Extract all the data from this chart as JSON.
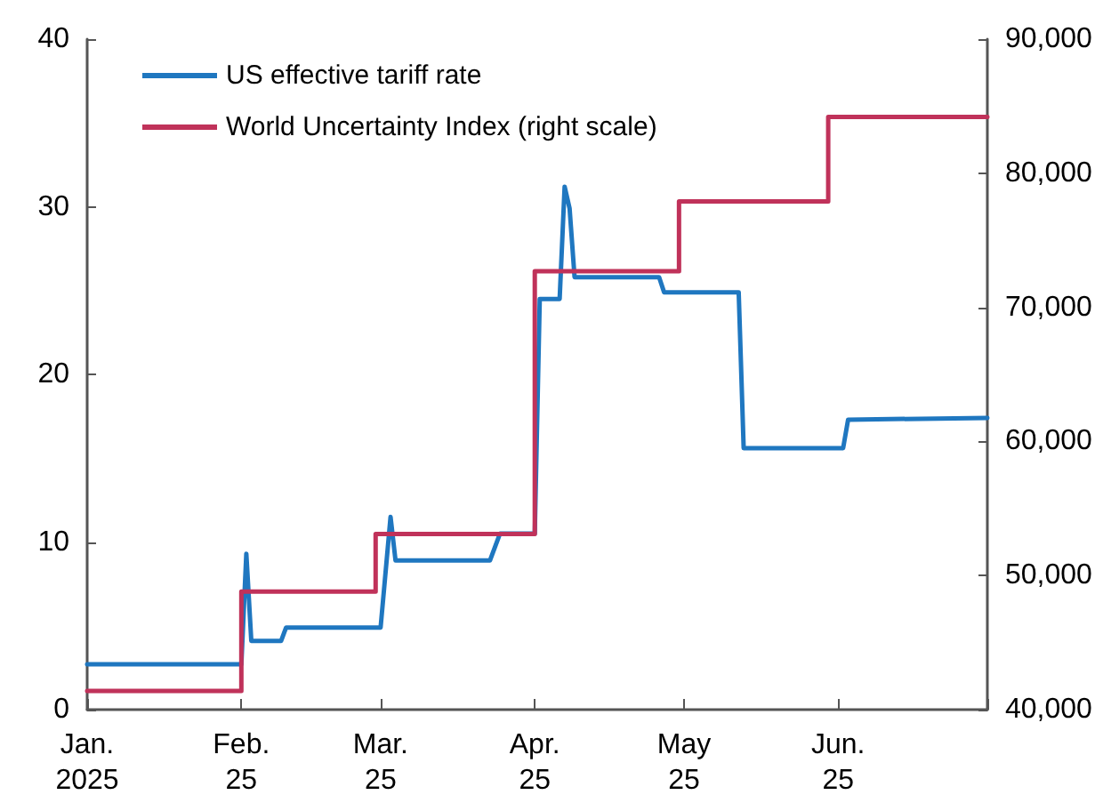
{
  "chart_data": {
    "type": "line",
    "xlim": [
      "2025-01-01",
      "2025-07-01"
    ],
    "xticks": [
      {
        "value": "2025-01-01",
        "label": "Jan.\n2025"
      },
      {
        "value": "2025-02-01",
        "label": "Feb.\n25"
      },
      {
        "value": "2025-03-01",
        "label": "Mar.\n25"
      },
      {
        "value": "2025-04-01",
        "label": "Apr.\n25"
      },
      {
        "value": "2025-05-01",
        "label": "May\n25"
      },
      {
        "value": "2025-06-01",
        "label": "Jun.\n25"
      },
      {
        "value": "2025-07-01",
        "label": null
      }
    ],
    "ylim": [
      0,
      40
    ],
    "yticks": [
      0,
      10,
      20,
      30,
      40
    ],
    "y2lim": [
      40000,
      90000
    ],
    "y2ticks": [
      {
        "value": 40000,
        "label": "40,000"
      },
      {
        "value": 50000,
        "label": "50,000"
      },
      {
        "value": 60000,
        "label": "60,000"
      },
      {
        "value": 70000,
        "label": "70,000"
      },
      {
        "value": 80000,
        "label": "80,000"
      },
      {
        "value": 90000,
        "label": "90,000"
      }
    ],
    "grid": false,
    "legend": "top left",
    "marker": "none",
    "line_style": "solid",
    "series": [
      {
        "name": "US effective tariff rate",
        "color": "#1f77c0",
        "x": [
          "2025-01-01",
          "2025-02-01",
          "2025-02-02",
          "2025-02-03",
          "2025-02-09",
          "2025-02-10",
          "2025-03-01",
          "2025-03-03",
          "2025-03-04",
          "2025-03-23",
          "2025-03-25",
          "2025-04-01",
          "2025-04-02",
          "2025-04-06",
          "2025-04-07",
          "2025-04-08",
          "2025-04-09",
          "2025-04-26",
          "2025-04-27",
          "2025-05-12",
          "2025-05-13",
          "2025-06-02",
          "2025-06-03",
          "2025-07-01"
        ],
        "values": [
          2.7,
          2.7,
          9.3,
          4.1,
          4.1,
          4.9,
          4.9,
          11.5,
          8.9,
          8.9,
          10.5,
          10.5,
          24.5,
          24.5,
          31.2,
          29.9,
          25.8,
          25.8,
          24.9,
          24.9,
          15.6,
          15.6,
          17.3,
          17.4
        ]
      },
      {
        "name": "World Uncertainty Index (right scale)",
        "type": "step",
        "axis": "y2",
        "color": "#c0325a",
        "x": [
          "2025-01-01",
          "2025-02-01",
          "2025-02-28",
          "2025-04-01",
          "2025-04-30",
          "2025-05-30",
          "2025-07-01"
        ],
        "values": [
          41400,
          48800,
          53100,
          72700,
          77900,
          84200,
          84200
        ]
      }
    ]
  }
}
